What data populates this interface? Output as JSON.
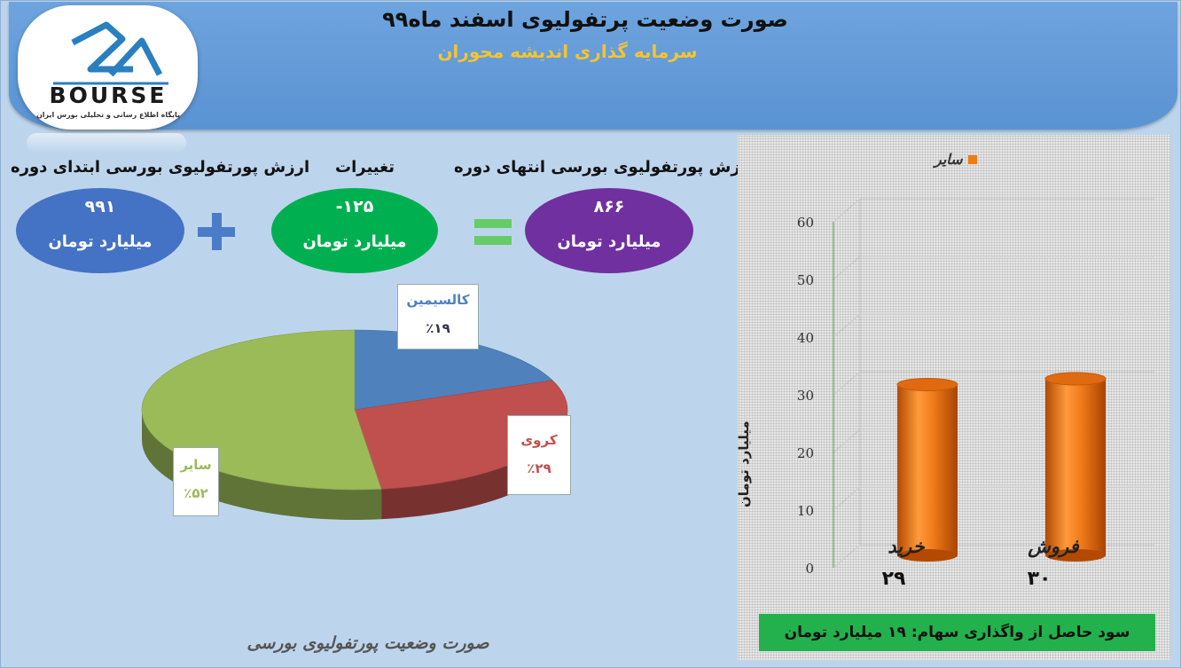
{
  "header": {
    "title": "صورت وضعیت پرتفولیوی اسفند ماه۹۹",
    "subtitle": "سرمایه گذاری اندیشه محوران"
  },
  "logo": {
    "brand": "BOURSE",
    "tagline": "پایگاه اطلاع رسانی و تحلیلی بورس ایران"
  },
  "summary": {
    "start_label": "ارزش پورتفولیوی بورسی ابتدای دوره",
    "start_value": "۹۹۱",
    "change_label": "تغییرات",
    "change_value": "-۱۲۵",
    "end_label": "ارزش پورتفولیوی بورسی انتهای دوره",
    "end_value": "۸۶۶",
    "unit": "میلیارد تومان",
    "colors": {
      "start": "#4472c4",
      "change": "#00b050",
      "end": "#7030a0"
    }
  },
  "caption": "صورت وضعیت پورتفولیوی بورسی",
  "profit_note": "سود حاصل از واگذاری سهام: ۱۹ میلیارد تومان",
  "chart_data": [
    {
      "type": "pie",
      "categories": [
        "کالسیمین",
        "کروی",
        "سایر"
      ],
      "values": [
        19,
        29,
        52
      ],
      "value_labels": [
        "٪۱۹",
        "٪۲۹",
        "٪۵۲"
      ],
      "colors": [
        "#4f81bd",
        "#c0504d",
        "#9bbb59"
      ]
    },
    {
      "type": "bar",
      "categories": [
        "خرید",
        "فروش"
      ],
      "values": [
        29,
        30
      ],
      "value_labels": [
        "۲۹",
        "۳۰"
      ],
      "series": [
        {
          "name": "سایر",
          "values": [
            29,
            30
          ]
        }
      ],
      "ylabel": "میلیارد تومان",
      "ylim": [
        0,
        60
      ],
      "yticks": [
        "0",
        "10",
        "20",
        "30",
        "40",
        "50",
        "60"
      ],
      "color": "#f07a1a",
      "legend": "top"
    }
  ]
}
